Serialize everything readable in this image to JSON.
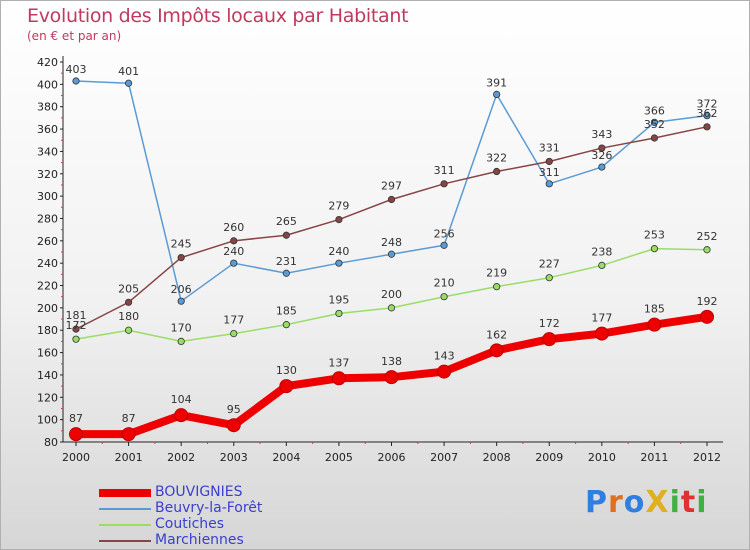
{
  "title": "Evolution des Impôts locaux par Habitant",
  "subtitle": "(en € et par an)",
  "logo": {
    "text": "ProXiti",
    "colors": [
      "#2f7fe0",
      "#e07020",
      "#2f7fe0",
      "#e0b020",
      "#40b040",
      "#e03030",
      "#40b040"
    ]
  },
  "chart_data": {
    "type": "line",
    "x": [
      "2000",
      "2001",
      "2002",
      "2003",
      "2004",
      "2005",
      "2006",
      "2007",
      "2008",
      "2009",
      "2010",
      "2011",
      "2012"
    ],
    "ylim": [
      80,
      420
    ],
    "yticks": [
      80,
      100,
      120,
      140,
      160,
      180,
      200,
      220,
      240,
      260,
      280,
      300,
      320,
      340,
      360,
      380,
      400,
      420
    ],
    "grid": false,
    "legend_position": "bottom-left",
    "series": [
      {
        "name": "BOUVIGNIES",
        "color": "#ee0000",
        "values": [
          87,
          87,
          104,
          95,
          130,
          137,
          138,
          143,
          162,
          172,
          177,
          185,
          192
        ],
        "labels": [
          "87",
          "87",
          "104",
          "95",
          "130",
          "137",
          "138",
          "143",
          "162",
          "172",
          "177",
          "185",
          "192"
        ]
      },
      {
        "name": "Beuvry-la-Forêt",
        "color": "#5b9bd5",
        "values": [
          403,
          401,
          206,
          240,
          231,
          240,
          248,
          256,
          391,
          311,
          326,
          366,
          372
        ],
        "labels": [
          "403",
          "401",
          "206",
          "240",
          "231",
          "240",
          "248",
          "256",
          "391",
          "311",
          "326",
          "366",
          "372"
        ]
      },
      {
        "name": "Coutiches",
        "color": "#99dd66",
        "values": [
          172,
          180,
          170,
          177,
          185,
          195,
          200,
          210,
          219,
          227,
          238,
          253,
          252
        ],
        "labels": [
          "172",
          "180",
          "170",
          "177",
          "185",
          "195",
          "200",
          "210",
          "219",
          "227",
          "238",
          "253",
          "252"
        ]
      },
      {
        "name": "Marchiennes",
        "color": "#884444",
        "values": [
          181,
          205,
          245,
          260,
          265,
          279,
          297,
          311,
          322,
          331,
          343,
          352,
          362
        ],
        "labels": [
          "181",
          "205",
          "245",
          "260",
          "265",
          "279",
          "297",
          "311",
          "322",
          "331",
          "343",
          "352",
          "362"
        ]
      }
    ]
  }
}
